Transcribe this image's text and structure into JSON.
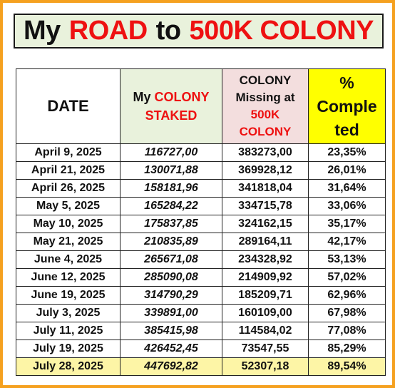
{
  "title": {
    "part1": "My",
    "part2": "ROAD",
    "part3": "to",
    "part4": "500K COLONY"
  },
  "headers": {
    "date": "DATE",
    "staked_line1_a": "My",
    "staked_line1_b": "COLONY",
    "staked_line2": "STAKED",
    "missing_line1": "COLONY",
    "missing_line2": "Missing at",
    "missing_line3": "500K",
    "missing_line4": "COLONY",
    "pct_line1": "%",
    "pct_line2": "Comple",
    "pct_line3": "ted"
  },
  "rows": [
    {
      "date": "April 9, 2025",
      "staked": "116727,00",
      "missing": "383273,00",
      "pct": "23,35%"
    },
    {
      "date": "April 21, 2025",
      "staked": "130071,88",
      "missing": "369928,12",
      "pct": "26,01%"
    },
    {
      "date": "April 26, 2025",
      "staked": "158181,96",
      "missing": "341818,04",
      "pct": "31,64%"
    },
    {
      "date": "May 5, 2025",
      "staked": "165284,22",
      "missing": "334715,78",
      "pct": "33,06%"
    },
    {
      "date": "May 10, 2025",
      "staked": "175837,85",
      "missing": "324162,15",
      "pct": "35,17%"
    },
    {
      "date": "May 21, 2025",
      "staked": "210835,89",
      "missing": "289164,11",
      "pct": "42,17%"
    },
    {
      "date": "June 4, 2025",
      "staked": "265671,08",
      "missing": "234328,92",
      "pct": "53,13%"
    },
    {
      "date": "June 12, 2025",
      "staked": "285090,08",
      "missing": "214909,92",
      "pct": "57,02%"
    },
    {
      "date": "June 19, 2025",
      "staked": "314790,29",
      "missing": "185209,71",
      "pct": "62,96%"
    },
    {
      "date": "July 3, 2025",
      "staked": "339891,00",
      "missing": "160109,00",
      "pct": "67,98%"
    },
    {
      "date": "July 11, 2025",
      "staked": "385415,98",
      "missing": "114584,02",
      "pct": "77,08%"
    },
    {
      "date": "July 19, 2025",
      "staked": "426452,45",
      "missing": "73547,55",
      "pct": "85,29%"
    },
    {
      "date": "July 28, 2025",
      "staked": "447692,82",
      "missing": "52307,18",
      "pct": "89,54%"
    }
  ],
  "colors": {
    "frame_border": "#f5a11f",
    "title_bg": "#e9f2dc",
    "accent_red": "#ee1111",
    "staked_header_bg": "#e9f2dc",
    "missing_header_bg": "#f3dede",
    "pct_header_bg": "#ffff00",
    "last_row_bg": "#fdf5a6"
  }
}
